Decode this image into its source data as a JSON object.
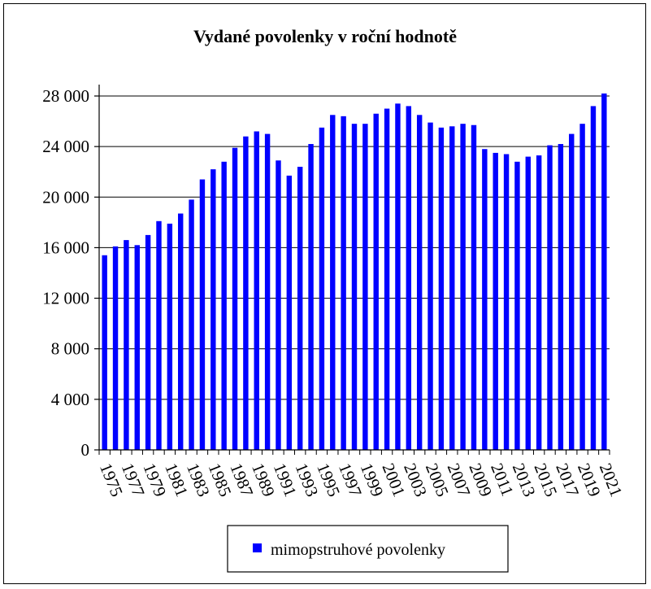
{
  "chart_data": {
    "type": "bar",
    "title": "Vydané povolenky v roční hodnotě",
    "xlabel": "",
    "ylabel": "",
    "ylim": [
      0,
      28000
    ],
    "yticks": [
      0,
      4000,
      8000,
      12000,
      16000,
      20000,
      24000,
      28000
    ],
    "ytick_labels": [
      "0",
      "4 000",
      "8 000",
      "12 000",
      "16 000",
      "20 000",
      "24 000",
      "28 000"
    ],
    "grid": true,
    "legend_position": "bottom",
    "categories": [
      "1975",
      "1976",
      "1977",
      "1978",
      "1979",
      "1980",
      "1981",
      "1982",
      "1983",
      "1984",
      "1985",
      "1986",
      "1987",
      "1988",
      "1989",
      "1990",
      "1991",
      "1992",
      "1993",
      "1994",
      "1995",
      "1996",
      "1997",
      "1998",
      "1999",
      "2000",
      "2001",
      "2002",
      "2003",
      "2004",
      "2005",
      "2006",
      "2007",
      "2008",
      "2009",
      "2010",
      "2011",
      "2012",
      "2013",
      "2014",
      "2015",
      "2016",
      "2017",
      "2018",
      "2019",
      "2020",
      "2021"
    ],
    "xtick_labels": [
      "1975",
      "1977",
      "1979",
      "1981",
      "1983",
      "1985",
      "1987",
      "1989",
      "1991",
      "1993",
      "1995",
      "1997",
      "1999",
      "2001",
      "2003",
      "2005",
      "2007",
      "2009",
      "2011",
      "2013",
      "2015",
      "2017",
      "2019",
      "2021"
    ],
    "series": [
      {
        "name": "mimopstruhové povolenky",
        "color": "#0000ff",
        "values": [
          15400,
          16100,
          16600,
          16200,
          17000,
          18100,
          17900,
          18700,
          19800,
          21400,
          22200,
          22800,
          23900,
          24800,
          25200,
          25000,
          22900,
          21700,
          22400,
          24200,
          25500,
          26500,
          26400,
          25800,
          25800,
          26600,
          27000,
          27400,
          27200,
          26500,
          25900,
          25500,
          25600,
          25800,
          25700,
          23800,
          23500,
          23400,
          22800,
          23200,
          23300,
          24100,
          24200,
          25000,
          25800,
          27200,
          28200
        ]
      }
    ]
  }
}
